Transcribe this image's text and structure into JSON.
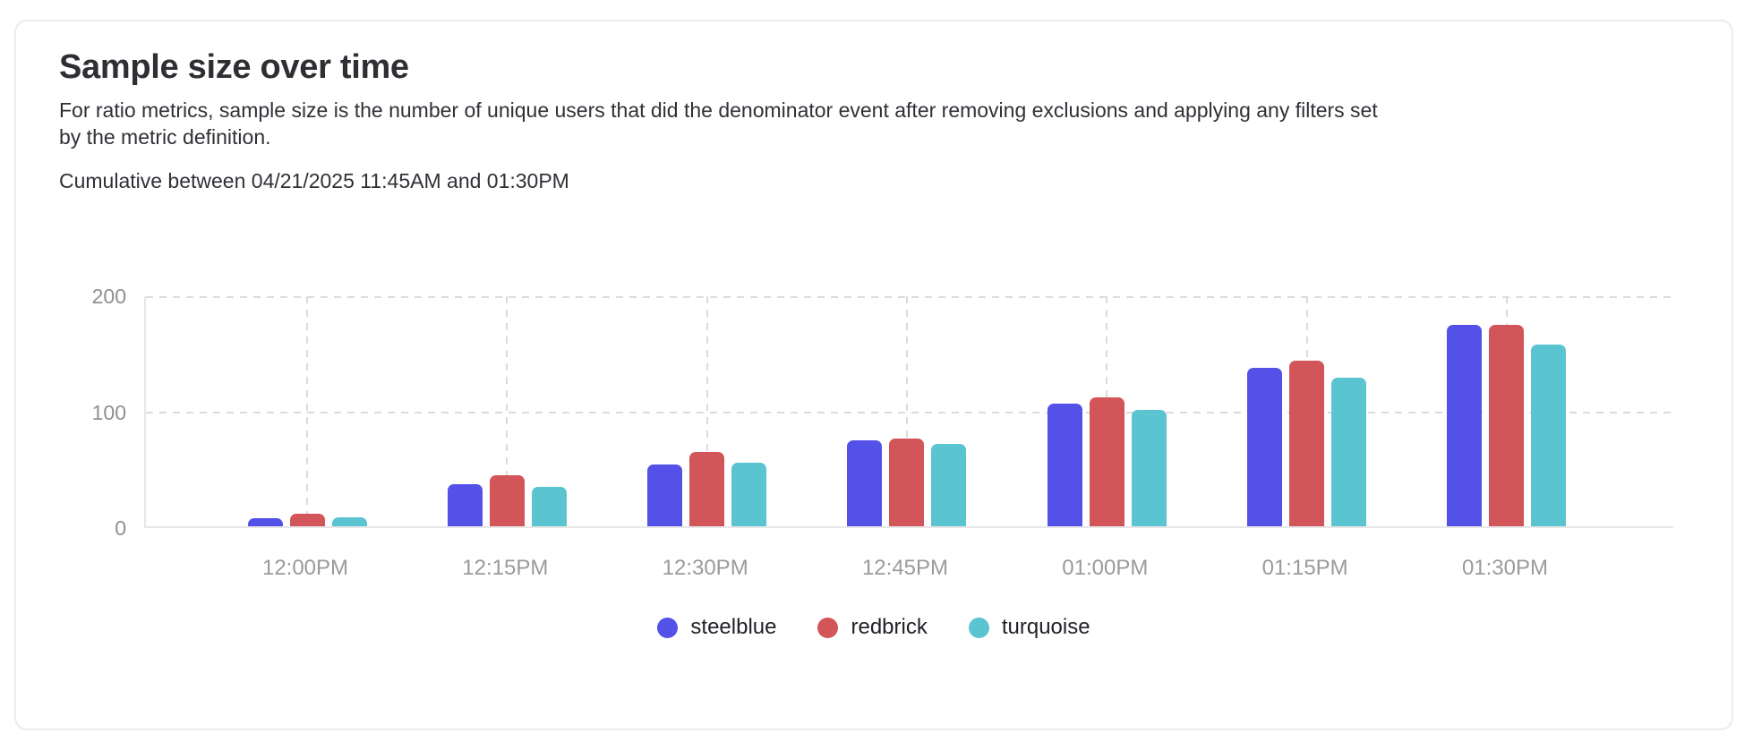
{
  "page": {
    "title": "Sample size over time",
    "subtitle": "For ratio metrics, sample size is the number of unique users that did the denominator event after removing exclusions and applying any filters set by the metric definition.",
    "range_label": "Cumulative between 04/21/2025 11:45AM and 01:30PM"
  },
  "colors": {
    "steelblue": "#5451E8",
    "redbrick": "#D2555A",
    "turquoise": "#5BC4D1",
    "axis_text_y": "#8F8F8F",
    "axis_text_x": "#9A9A9A",
    "grid": "#DBDBDB",
    "plot_border": "#E7E7E7",
    "card_border": "#ECECF0"
  },
  "chart_data": {
    "type": "bar",
    "title": "Sample size over time",
    "categories": [
      "12:00PM",
      "12:15PM",
      "12:30PM",
      "12:45PM",
      "01:00PM",
      "01:15PM",
      "01:30PM"
    ],
    "series": [
      {
        "name": "steelblue",
        "color": "#5451E8",
        "values": [
          7,
          36,
          53,
          74,
          106,
          137,
          174
        ]
      },
      {
        "name": "redbrick",
        "color": "#D2555A",
        "values": [
          11,
          44,
          64,
          76,
          111,
          143,
          174
        ]
      },
      {
        "name": "turquoise",
        "color": "#5BC4D1",
        "values": [
          8,
          34,
          55,
          71,
          100,
          128,
          157
        ]
      }
    ],
    "xlabel": "",
    "ylabel": "",
    "ylim": [
      0,
      200
    ],
    "y_ticks": [
      0,
      100,
      200
    ],
    "grid": "dashed",
    "legend_position": "bottom"
  }
}
